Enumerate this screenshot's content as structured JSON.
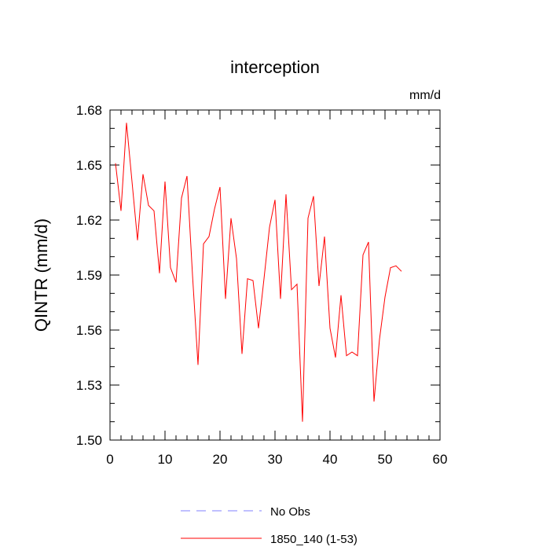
{
  "chart_data": {
    "type": "line",
    "title": "interception",
    "units_label": "mm/d",
    "ylabel": "QINTR  (mm/d)",
    "xlabel": "",
    "xlim": [
      0,
      60
    ],
    "ylim": [
      1.5,
      1.68
    ],
    "x_ticks": [
      0,
      10,
      20,
      30,
      40,
      50,
      60
    ],
    "x_tick_labels": [
      "0",
      "10",
      "20",
      "30",
      "40",
      "50",
      "60"
    ],
    "y_ticks": [
      1.5,
      1.53,
      1.56,
      1.59,
      1.62,
      1.65,
      1.68
    ],
    "y_tick_labels": [
      "1.50",
      "1.53",
      "1.56",
      "1.59",
      "1.62",
      "1.65",
      "1.68"
    ],
    "grid": false,
    "legend_position": "bottom",
    "series": [
      {
        "name": "1850_140 (1-53)",
        "color": "#ff0000",
        "dash": "solid",
        "x": [
          1,
          2,
          3,
          4,
          5,
          6,
          7,
          8,
          9,
          10,
          11,
          12,
          13,
          14,
          15,
          16,
          17,
          18,
          19,
          20,
          21,
          22,
          23,
          24,
          25,
          26,
          27,
          28,
          29,
          30,
          31,
          32,
          33,
          34,
          35,
          36,
          37,
          38,
          39,
          40,
          41,
          42,
          43,
          44,
          45,
          46,
          47,
          48,
          49,
          50,
          51,
          52,
          53
        ],
        "values": [
          1.651,
          1.625,
          1.673,
          1.641,
          1.609,
          1.645,
          1.628,
          1.625,
          1.591,
          1.641,
          1.594,
          1.586,
          1.632,
          1.644,
          1.59,
          1.541,
          1.607,
          1.611,
          1.626,
          1.638,
          1.577,
          1.621,
          1.599,
          1.547,
          1.588,
          1.587,
          1.561,
          1.588,
          1.616,
          1.631,
          1.577,
          1.634,
          1.582,
          1.585,
          1.51,
          1.621,
          1.633,
          1.584,
          1.611,
          1.561,
          1.545,
          1.579,
          1.546,
          1.548,
          1.546,
          1.601,
          1.608,
          1.521,
          1.555,
          1.578,
          1.594,
          1.595,
          1.592
        ]
      }
    ],
    "legend": [
      {
        "label": "No Obs",
        "color": "#8080ff",
        "dash": "dashed"
      },
      {
        "label": "1850_140 (1-53)",
        "color": "#ff0000",
        "dash": "solid"
      }
    ]
  }
}
